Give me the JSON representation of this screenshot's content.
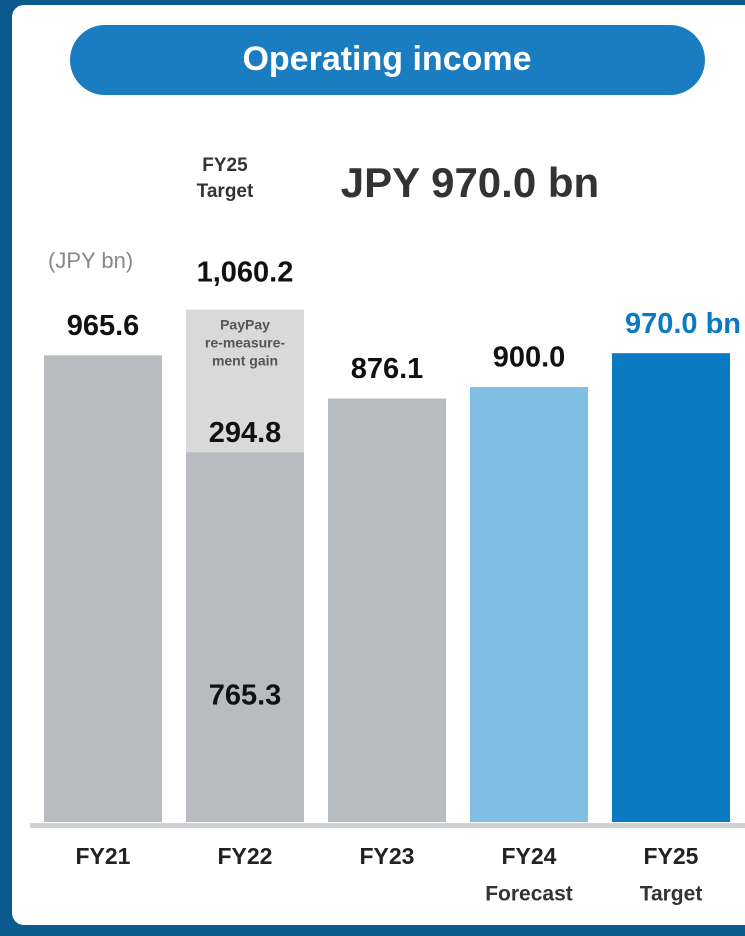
{
  "chart_data": {
    "type": "stacked_bar",
    "title": "Operating income",
    "subtitle": {
      "label_lines": [
        "FY25",
        "Target"
      ],
      "text": "JPY 970.0 bn"
    },
    "y_label": "(JPY bn)",
    "categories": [
      "FY21",
      "FY22",
      "FY23",
      "FY24",
      "FY25"
    ],
    "sublabels": [
      null,
      null,
      null,
      "Forecast",
      "Target"
    ],
    "series": [
      {
        "colors": [
          "#b8bcc0",
          "#b8bcc0",
          "#b8bcc0",
          "#80bee3",
          "#0a7bc2"
        ],
        "values": [
          965.6,
          765.3,
          876.1,
          900.0,
          970.0
        ],
        "value_labels": [
          "965.6",
          "765.3",
          "876.1",
          "900.0",
          "970.0 bn"
        ]
      },
      {
        "color": "#d9d9d9",
        "values": [
          null,
          294.8,
          null,
          null,
          null
        ],
        "value_labels": [
          null,
          "294.8",
          null,
          null,
          null
        ]
      }
    ],
    "annotations": [
      {
        "category": 1,
        "text": "1,060.2"
      },
      {
        "category": 1,
        "lines": [
          "PayPay",
          "re-measure-",
          "ment gain"
        ]
      }
    ],
    "ylim": [
      0,
      1200
    ]
  }
}
